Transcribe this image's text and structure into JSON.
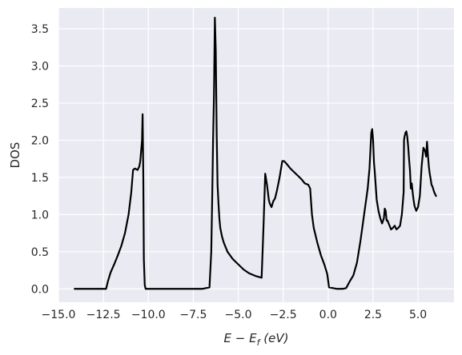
{
  "chart_data": {
    "type": "line",
    "title": "",
    "xlabel": "E − E",
    "xlabel_sub": "f",
    "xlabel_unit": " (eV)",
    "ylabel": "DOS",
    "xlim": [
      -15.0,
      7.0
    ],
    "ylim": [
      -0.18,
      3.78
    ],
    "xticks": [
      -15.0,
      -12.5,
      -10.0,
      -7.5,
      -5.0,
      -2.5,
      0.0,
      2.5,
      5.0
    ],
    "xtick_labels": [
      "−15.0",
      "−12.5",
      "−10.0",
      "−7.5",
      "−5.0",
      "−2.5",
      "0.0",
      "2.5",
      "5.0"
    ],
    "yticks": [
      0.0,
      0.5,
      1.0,
      1.5,
      2.0,
      2.5,
      3.0,
      3.5
    ],
    "ytick_labels": [
      "0.0",
      "0.5",
      "1.0",
      "1.5",
      "2.0",
      "2.5",
      "3.0",
      "3.5"
    ],
    "grid": true,
    "style": {
      "background": "#eaeaf2",
      "grid_color": "#ffffff",
      "line_color": "#000000"
    },
    "series": [
      {
        "x": [
          -14.1,
          -13.0,
          -12.35,
          -12.25,
          -12.1,
          -11.9,
          -11.7,
          -11.5,
          -11.3,
          -11.1,
          -10.95,
          -10.85,
          -10.75,
          -10.6,
          -10.5,
          -10.45,
          -10.35,
          -10.32,
          -10.28,
          -10.25,
          -10.2,
          -10.15,
          -9.0,
          -8.0,
          -7.0,
          -6.6,
          -6.5,
          -6.45,
          -6.4,
          -6.35,
          -6.3,
          -6.25,
          -6.2,
          -6.15,
          -6.1,
          -6.05,
          -6.0,
          -5.9,
          -5.8,
          -5.6,
          -5.3,
          -5.0,
          -4.7,
          -4.4,
          -4.0,
          -3.7,
          -3.6,
          -3.5,
          -3.4,
          -3.3,
          -3.25,
          -3.15,
          -3.05,
          -2.95,
          -2.85,
          -2.7,
          -2.55,
          -2.45,
          -2.3,
          -2.1,
          -1.8,
          -1.5,
          -1.3,
          -1.1,
          -1.0,
          -0.9,
          -0.8,
          -0.6,
          -0.4,
          -0.2,
          -0.05,
          0.05,
          0.5,
          0.8,
          1.0,
          1.2,
          1.4,
          1.6,
          1.8,
          2.0,
          2.2,
          2.3,
          2.4,
          2.45,
          2.5,
          2.55,
          2.6,
          2.7,
          2.8,
          2.9,
          3.0,
          3.1,
          3.15,
          3.2,
          3.25,
          3.3,
          3.4,
          3.5,
          3.6,
          3.7,
          3.8,
          3.9,
          4.0,
          4.1,
          4.2,
          4.22,
          4.25,
          4.3,
          4.35,
          4.4,
          4.45,
          4.5,
          4.55,
          4.6,
          4.65,
          4.7,
          4.75,
          4.8,
          4.9,
          5.0,
          5.1,
          5.2,
          5.3,
          5.4,
          5.45,
          5.5,
          5.55,
          5.6,
          5.65,
          5.7,
          5.75,
          5.8,
          5.9,
          6.0
        ],
        "y": [
          0.0,
          0.0,
          0.0,
          0.1,
          0.22,
          0.33,
          0.45,
          0.58,
          0.75,
          1.0,
          1.3,
          1.6,
          1.62,
          1.6,
          1.65,
          1.72,
          2.0,
          2.35,
          1.5,
          0.4,
          0.05,
          0.0,
          0.0,
          0.0,
          0.0,
          0.02,
          0.5,
          1.2,
          2.0,
          2.6,
          3.65,
          3.2,
          2.1,
          1.4,
          1.15,
          0.95,
          0.82,
          0.7,
          0.62,
          0.5,
          0.4,
          0.33,
          0.26,
          0.21,
          0.17,
          0.15,
          0.8,
          1.55,
          1.4,
          1.2,
          1.15,
          1.1,
          1.18,
          1.22,
          1.32,
          1.5,
          1.72,
          1.72,
          1.68,
          1.62,
          1.55,
          1.48,
          1.42,
          1.4,
          1.35,
          1.0,
          0.82,
          0.62,
          0.45,
          0.32,
          0.2,
          0.02,
          0.0,
          0.0,
          0.01,
          0.1,
          0.18,
          0.35,
          0.65,
          1.0,
          1.35,
          1.62,
          2.1,
          2.15,
          2.0,
          1.7,
          1.55,
          1.2,
          1.05,
          0.95,
          0.88,
          0.95,
          1.08,
          1.05,
          0.92,
          0.92,
          0.86,
          0.8,
          0.82,
          0.85,
          0.8,
          0.82,
          0.85,
          1.0,
          1.3,
          2.0,
          2.05,
          2.1,
          2.12,
          2.05,
          1.92,
          1.75,
          1.6,
          1.35,
          1.42,
          1.3,
          1.2,
          1.12,
          1.05,
          1.1,
          1.25,
          1.65,
          1.9,
          1.85,
          1.78,
          1.98,
          1.8,
          1.65,
          1.55,
          1.48,
          1.4,
          1.38,
          1.3,
          1.25
        ]
      }
    ]
  }
}
